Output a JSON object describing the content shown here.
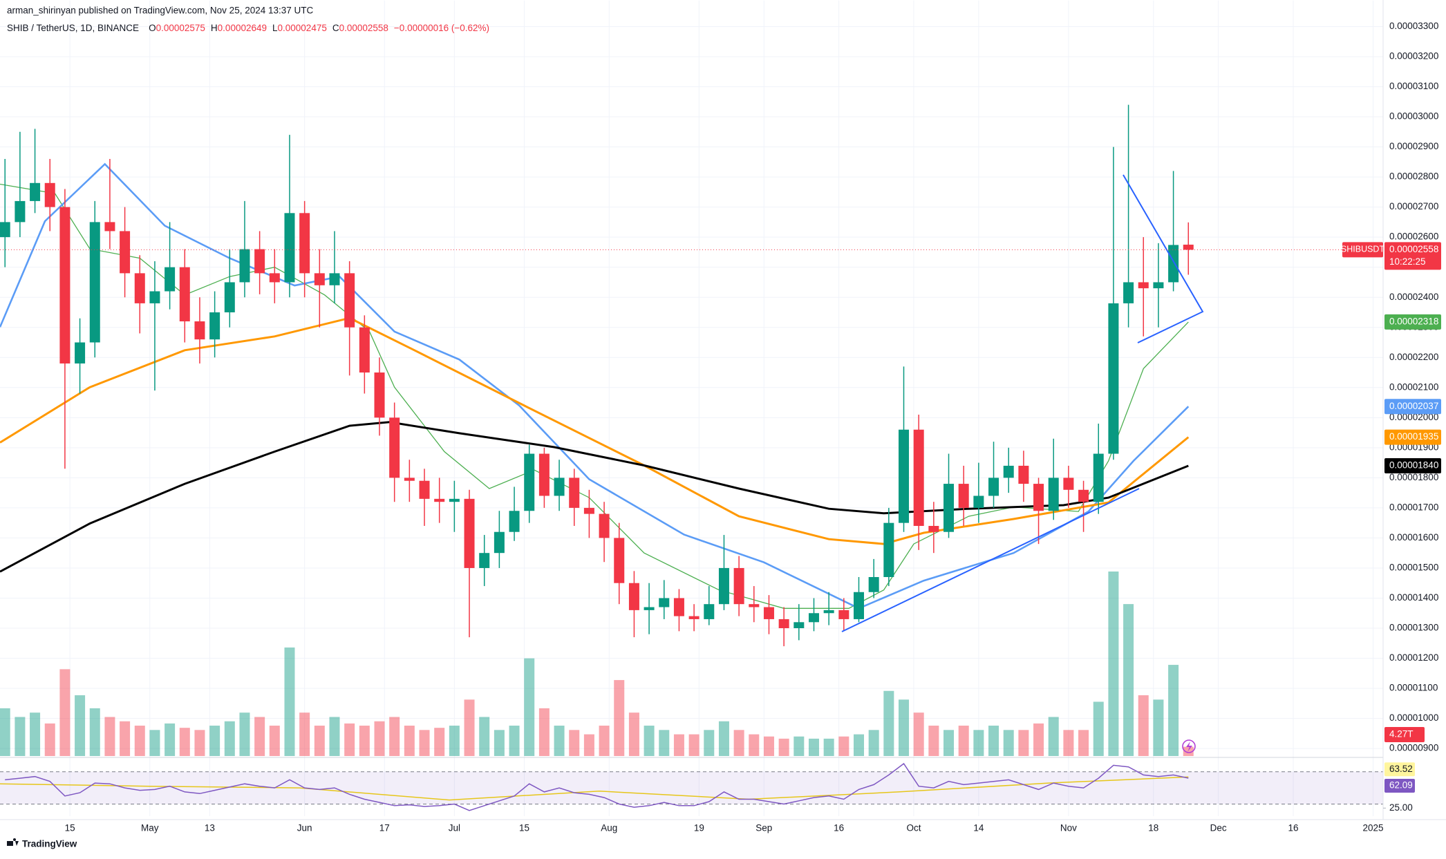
{
  "chart_data": {
    "type": "candlestick",
    "publisher": "arman_shirinyan published on TradingView.com, Nov 25, 2024 13:37 UTC",
    "symbol": "SHIB / TetherUS, 1D, BINANCE",
    "ohlc_labels": [
      "O",
      "H",
      "L",
      "C"
    ],
    "change": "−0.00000016 (−0.62%)",
    "ticker": "SHIBUSDT",
    "countdown": "10:22:25",
    "footer": "TradingView",
    "up_color": "#089981",
    "down_color": "#f23645",
    "grid": true,
    "x": [
      1,
      4,
      7,
      10,
      13,
      16,
      19,
      22,
      25,
      28,
      31,
      34,
      37,
      40,
      43,
      46,
      49,
      52,
      55,
      58,
      61,
      64,
      67,
      70,
      73,
      76,
      79,
      82,
      85,
      88,
      91,
      94,
      97,
      100,
      103,
      106,
      109,
      112,
      115,
      118,
      121,
      124,
      127,
      130,
      133,
      136,
      139,
      142,
      145,
      148,
      151,
      154,
      157,
      160,
      163,
      166,
      169,
      172,
      175,
      178,
      181,
      184,
      187,
      190,
      193,
      196,
      199,
      202,
      205,
      208,
      211,
      214,
      217,
      220,
      223,
      226,
      229,
      232,
      235,
      238
    ],
    "open": [
      2.6e-05,
      2.65e-05,
      2.72e-05,
      2.78e-05,
      2.7e-05,
      2.18e-05,
      2.25e-05,
      2.65e-05,
      2.62e-05,
      2.48e-05,
      2.38e-05,
      2.42e-05,
      2.5e-05,
      2.32e-05,
      2.26e-05,
      2.35e-05,
      2.45e-05,
      2.56e-05,
      2.48e-05,
      2.45e-05,
      2.68e-05,
      2.48e-05,
      2.44e-05,
      2.48e-05,
      2.3e-05,
      2.15e-05,
      2e-05,
      1.8e-05,
      1.79e-05,
      1.73e-05,
      1.72e-05,
      1.73e-05,
      1.5e-05,
      1.55e-05,
      1.62e-05,
      1.69e-05,
      1.88e-05,
      1.74e-05,
      1.8e-05,
      1.7e-05,
      1.68e-05,
      1.6e-05,
      1.45e-05,
      1.36e-05,
      1.37e-05,
      1.4e-05,
      1.34e-05,
      1.33e-05,
      1.38e-05,
      1.5e-05,
      1.38e-05,
      1.37e-05,
      1.33e-05,
      1.3e-05,
      1.32e-05,
      1.35e-05,
      1.36e-05,
      1.33e-05,
      1.42e-05,
      1.47e-05,
      1.65e-05,
      1.96e-05,
      1.64e-05,
      1.62e-05,
      1.78e-05,
      1.7e-05,
      1.74e-05,
      1.8e-05,
      1.84e-05,
      1.78e-05,
      1.69e-05,
      1.8e-05,
      1.76e-05,
      1.72e-05,
      1.88e-05,
      2.38e-05,
      2.45e-05,
      2.43e-05,
      2.45e-05,
      2.575e-05
    ],
    "high": [
      2.86e-05,
      2.95e-05,
      2.96e-05,
      2.86e-05,
      2.76e-05,
      2.33e-05,
      2.72e-05,
      2.86e-05,
      2.7e-05,
      2.54e-05,
      2.52e-05,
      2.65e-05,
      2.56e-05,
      2.4e-05,
      2.42e-05,
      2.56e-05,
      2.72e-05,
      2.62e-05,
      2.56e-05,
      2.94e-05,
      2.72e-05,
      2.56e-05,
      2.62e-05,
      2.52e-05,
      2.34e-05,
      2.2e-05,
      2.05e-05,
      1.86e-05,
      1.83e-05,
      1.8e-05,
      1.79e-05,
      1.76e-05,
      1.61e-05,
      1.69e-05,
      1.77e-05,
      1.91e-05,
      1.9e-05,
      1.86e-05,
      1.83e-05,
      1.76e-05,
      1.72e-05,
      1.65e-05,
      1.49e-05,
      1.45e-05,
      1.46e-05,
      1.43e-05,
      1.38e-05,
      1.44e-05,
      1.61e-05,
      1.54e-05,
      1.44e-05,
      1.41e-05,
      1.37e-05,
      1.38e-05,
      1.4e-05,
      1.42e-05,
      1.4e-05,
      1.47e-05,
      1.53e-05,
      1.7e-05,
      2.17e-05,
      2.01e-05,
      1.72e-05,
      1.88e-05,
      1.84e-05,
      1.85e-05,
      1.92e-05,
      1.9e-05,
      1.89e-05,
      1.8e-05,
      1.93e-05,
      1.84e-05,
      1.79e-05,
      1.98e-05,
      2.9e-05,
      3.04e-05,
      2.6e-05,
      2.58e-05,
      2.82e-05,
      2.649e-05
    ],
    "low": [
      2.5e-05,
      2.6e-05,
      2.68e-05,
      2.62e-05,
      1.83e-05,
      2.08e-05,
      2.2e-05,
      2.56e-05,
      2.4e-05,
      2.28e-05,
      2.09e-05,
      2.36e-05,
      2.25e-05,
      2.18e-05,
      2.2e-05,
      2.3e-05,
      2.4e-05,
      2.41e-05,
      2.38e-05,
      2.4e-05,
      2.4e-05,
      2.3e-05,
      2.38e-05,
      2.14e-05,
      2.08e-05,
      1.94e-05,
      1.72e-05,
      1.72e-05,
      1.64e-05,
      1.65e-05,
      1.62e-05,
      1.27e-05,
      1.44e-05,
      1.5e-05,
      1.59e-05,
      1.65e-05,
      1.7e-05,
      1.69e-05,
      1.64e-05,
      1.6e-05,
      1.52e-05,
      1.38e-05,
      1.27e-05,
      1.28e-05,
      1.33e-05,
      1.29e-05,
      1.29e-05,
      1.31e-05,
      1.36e-05,
      1.34e-05,
      1.32e-05,
      1.28e-05,
      1.24e-05,
      1.26e-05,
      1.29e-05,
      1.31e-05,
      1.29e-05,
      1.32e-05,
      1.4e-05,
      1.44e-05,
      1.62e-05,
      1.56e-05,
      1.55e-05,
      1.6e-05,
      1.64e-05,
      1.65e-05,
      1.7e-05,
      1.75e-05,
      1.72e-05,
      1.58e-05,
      1.66e-05,
      1.7e-05,
      1.62e-05,
      1.68e-05,
      1.86e-05,
      2.3e-05,
      2.27e-05,
      2.3e-05,
      2.42e-05,
      2.475e-05
    ],
    "close": [
      2.65e-05,
      2.72e-05,
      2.78e-05,
      2.7e-05,
      2.18e-05,
      2.25e-05,
      2.65e-05,
      2.62e-05,
      2.48e-05,
      2.38e-05,
      2.42e-05,
      2.5e-05,
      2.32e-05,
      2.26e-05,
      2.35e-05,
      2.45e-05,
      2.56e-05,
      2.48e-05,
      2.45e-05,
      2.68e-05,
      2.48e-05,
      2.44e-05,
      2.48e-05,
      2.3e-05,
      2.15e-05,
      2e-05,
      1.8e-05,
      1.79e-05,
      1.73e-05,
      1.72e-05,
      1.73e-05,
      1.5e-05,
      1.55e-05,
      1.62e-05,
      1.69e-05,
      1.88e-05,
      1.74e-05,
      1.8e-05,
      1.7e-05,
      1.68e-05,
      1.6e-05,
      1.45e-05,
      1.36e-05,
      1.37e-05,
      1.4e-05,
      1.34e-05,
      1.33e-05,
      1.38e-05,
      1.5e-05,
      1.38e-05,
      1.37e-05,
      1.33e-05,
      1.3e-05,
      1.32e-05,
      1.35e-05,
      1.36e-05,
      1.33e-05,
      1.42e-05,
      1.47e-05,
      1.65e-05,
      1.96e-05,
      1.64e-05,
      1.62e-05,
      1.78e-05,
      1.7e-05,
      1.74e-05,
      1.8e-05,
      1.84e-05,
      1.78e-05,
      1.69e-05,
      1.8e-05,
      1.76e-05,
      1.72e-05,
      1.88e-05,
      2.38e-05,
      2.45e-05,
      2.43e-05,
      2.45e-05,
      2.574e-05,
      2.558e-05
    ],
    "xlim": [
      0,
      277
    ],
    "xticks": [
      {
        "value": 14,
        "label": "15"
      },
      {
        "value": 30,
        "label": "May"
      },
      {
        "value": 42,
        "label": "13"
      },
      {
        "value": 61,
        "label": "Jun"
      },
      {
        "value": 77,
        "label": "17"
      },
      {
        "value": 91,
        "label": "Jul"
      },
      {
        "value": 105,
        "label": "15"
      },
      {
        "value": 122,
        "label": "Aug"
      },
      {
        "value": 140,
        "label": "19"
      },
      {
        "value": 153,
        "label": "Sep"
      },
      {
        "value": 168,
        "label": "16"
      },
      {
        "value": 183,
        "label": "Oct"
      },
      {
        "value": 196,
        "label": "14"
      },
      {
        "value": 214,
        "label": "Nov"
      },
      {
        "value": 231,
        "label": "18"
      },
      {
        "value": 244,
        "label": "Dec"
      },
      {
        "value": 259,
        "label": "16"
      },
      {
        "value": 275,
        "label": "2025"
      }
    ],
    "ylim": [
      8.75e-06,
      3.327e-05
    ],
    "yticks": [
      {
        "value": 3.3e-05,
        "label": "0.00003300"
      },
      {
        "value": 3.2e-05,
        "label": "0.00003200"
      },
      {
        "value": 3.1e-05,
        "label": "0.00003100"
      },
      {
        "value": 3e-05,
        "label": "0.00003000"
      },
      {
        "value": 2.9e-05,
        "label": "0.00002900"
      },
      {
        "value": 2.8e-05,
        "label": "0.00002800"
      },
      {
        "value": 2.7e-05,
        "label": "0.00002700"
      },
      {
        "value": 2.6e-05,
        "label": "0.00002600"
      },
      {
        "value": 2.5e-05,
        "label": "0.00002500"
      },
      {
        "value": 2.4e-05,
        "label": "0.00002400"
      },
      {
        "value": 2.3e-05,
        "label": "0.00002300"
      },
      {
        "value": 2.2e-05,
        "label": "0.00002200"
      },
      {
        "value": 2.1e-05,
        "label": "0.00002100"
      },
      {
        "value": 2e-05,
        "label": "0.00002000"
      },
      {
        "value": 1.9e-05,
        "label": "0.00001900"
      },
      {
        "value": 1.8e-05,
        "label": "0.00001800"
      },
      {
        "value": 1.7e-05,
        "label": "0.00001700"
      },
      {
        "value": 1.6e-05,
        "label": "0.00001600"
      },
      {
        "value": 1.5e-05,
        "label": "0.00001500"
      },
      {
        "value": 1.4e-05,
        "label": "0.00001400"
      },
      {
        "value": 1.3e-05,
        "label": "0.00001300"
      },
      {
        "value": 1.2e-05,
        "label": "0.00001200"
      },
      {
        "value": 1.1e-05,
        "label": "0.00001100"
      },
      {
        "value": 1e-05,
        "label": "0.00001000"
      },
      {
        "value": 9e-06,
        "label": "0.00000900"
      }
    ],
    "moving_averages": [
      {
        "color": "#4caf50",
        "tag": "0.00002318",
        "x": [
          0,
          11,
          18,
          28,
          37,
          46,
          55,
          65,
          74,
          79,
          89,
          98,
          107,
          118,
          129,
          144,
          157,
          170,
          177,
          183,
          194,
          203,
          216,
          222,
          229,
          238
        ],
        "values": [
          2.776e-05,
          2.745e-05,
          2.561e-05,
          2.53e-05,
          2.408e-05,
          2.469e-05,
          2.5e-05,
          2.408e-05,
          2.286e-05,
          2.101e-05,
          1.887e-05,
          1.764e-05,
          1.826e-05,
          1.734e-05,
          1.55e-05,
          1.427e-05,
          1.366e-05,
          1.366e-05,
          1.427e-05,
          1.58e-05,
          1.672e-05,
          1.703e-05,
          1.688e-05,
          1.856e-05,
          2.163e-05,
          2.318e-05
        ]
      },
      {
        "color": "#5b9cf6",
        "tag": "0.00002037",
        "x": [
          0,
          9,
          21,
          33,
          46,
          59,
          68,
          79,
          92,
          104,
          118,
          137,
          153,
          172,
          185,
          203,
          218,
          227,
          238
        ],
        "values": [
          2.301e-05,
          2.653e-05,
          2.843e-05,
          2.638e-05,
          2.53e-05,
          2.439e-05,
          2.469e-05,
          2.286e-05,
          2.193e-05,
          2.04e-05,
          1.795e-05,
          1.611e-05,
          1.519e-05,
          1.366e-05,
          1.458e-05,
          1.55e-05,
          1.688e-05,
          1.856e-05,
          2.037e-05
        ]
      },
      {
        "color": "#ff9800",
        "tag": "0.00001935",
        "x": [
          0,
          18,
          37,
          55,
          70,
          83,
          105,
          129,
          148,
          166,
          177,
          185,
          203,
          222,
          238
        ],
        "values": [
          1.917e-05,
          2.101e-05,
          2.224e-05,
          2.27e-05,
          2.331e-05,
          2.224e-05,
          2.04e-05,
          1.841e-05,
          1.672e-05,
          1.596e-05,
          1.58e-05,
          1.617e-05,
          1.663e-05,
          1.718e-05,
          1.935e-05
        ]
      },
      {
        "color": "#000000",
        "tag": "0.00001840",
        "x": [
          0,
          18,
          37,
          55,
          70,
          78,
          92,
          111,
          129,
          148,
          166,
          177,
          194,
          213,
          222,
          238
        ],
        "values": [
          1.488e-05,
          1.648e-05,
          1.78e-05,
          1.887e-05,
          1.973e-05,
          1.985e-05,
          1.948e-05,
          1.902e-05,
          1.841e-05,
          1.764e-05,
          1.697e-05,
          1.682e-05,
          1.697e-05,
          1.709e-05,
          1.734e-05,
          1.84e-05
        ]
      }
    ],
    "volume": {
      "values": [
        22,
        18,
        20,
        15,
        40,
        28,
        22,
        18,
        16,
        14,
        12,
        15,
        13,
        12,
        14,
        16,
        20,
        18,
        14,
        50,
        20,
        14,
        18,
        15,
        14,
        16,
        18,
        14,
        12,
        13,
        14,
        26,
        18,
        12,
        14,
        45,
        22,
        14,
        12,
        10,
        14,
        35,
        20,
        14,
        12,
        10,
        10,
        12,
        16,
        12,
        10,
        9,
        8,
        9,
        8,
        8,
        9,
        10,
        12,
        30,
        26,
        20,
        14,
        12,
        14,
        12,
        14,
        12,
        12,
        15,
        18,
        12,
        12,
        25,
        85,
        70,
        28,
        26,
        42,
        4.27
      ],
      "value_labels": [
        null,
        null,
        null,
        null,
        null,
        null,
        null,
        null,
        null,
        null,
        null,
        null,
        null,
        null,
        null,
        null,
        null,
        null,
        null,
        null,
        null,
        null,
        null,
        null,
        null,
        null,
        null,
        null,
        null,
        null,
        null,
        null,
        null,
        null,
        null,
        null,
        null,
        null,
        null,
        null,
        null,
        null,
        null,
        null,
        null,
        null,
        null,
        null,
        null,
        null,
        null,
        null,
        null,
        null,
        null,
        null,
        null,
        null,
        null,
        null,
        null,
        null,
        null,
        null,
        null,
        null,
        null,
        null,
        null,
        null,
        null,
        null,
        null,
        null,
        null,
        null,
        null,
        null,
        null,
        "4.27T"
      ]
    },
    "rsi": {
      "color": "#7e57c2",
      "ma_color": "#e6c619",
      "ylim": [
        15,
        86
      ],
      "yticks": [
        {
          "value": 25,
          "label": "25.00"
        }
      ],
      "bands": [
        30,
        70
      ],
      "values": [
        60,
        62,
        64,
        58,
        40,
        44,
        56,
        55,
        50,
        47,
        48,
        52,
        45,
        43,
        47,
        51,
        55,
        52,
        50,
        60,
        50,
        48,
        50,
        42,
        36,
        32,
        28,
        29,
        27,
        28,
        30,
        22,
        28,
        34,
        40,
        55,
        45,
        50,
        44,
        42,
        38,
        30,
        26,
        28,
        32,
        28,
        28,
        33,
        45,
        36,
        36,
        33,
        30,
        34,
        38,
        40,
        36,
        48,
        54,
        66,
        80,
        52,
        50,
        58,
        54,
        56,
        58,
        60,
        54,
        48,
        56,
        52,
        50,
        62,
        78,
        76,
        66,
        64,
        66,
        62.09
      ],
      "ma_x": [
        0,
        30,
        60,
        90,
        120,
        150,
        180,
        210,
        238
      ],
      "ma_values": [
        55,
        52,
        50,
        35,
        46,
        36,
        45,
        56,
        63.52
      ]
    }
  }
}
